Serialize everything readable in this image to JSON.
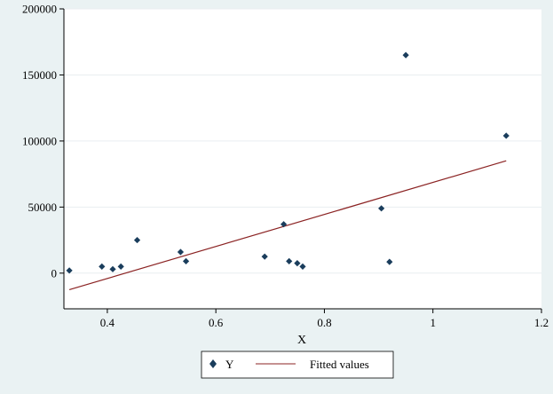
{
  "chart_data": {
    "type": "scatter",
    "title": "",
    "xlabel": "X",
    "ylabel": "",
    "xlim": [
      0.32,
      1.2
    ],
    "ylim": [
      -27000,
      200000
    ],
    "x_ticks": [
      0.4,
      0.6,
      0.8,
      1,
      1.2
    ],
    "x_tick_labels": [
      "0.4",
      "0.6",
      "0.8",
      "1",
      "1.2"
    ],
    "y_ticks": [
      0,
      50000,
      100000,
      150000,
      200000
    ],
    "y_tick_labels": [
      "0",
      "50000",
      "100000",
      "150000",
      "200000"
    ],
    "grid": "horizontal",
    "legend_placement": "bottom",
    "series": [
      {
        "name": "Y",
        "kind": "scatter",
        "marker": "diamond",
        "color": "#1a3d5c",
        "points": [
          {
            "x": 0.33,
            "y": 2000
          },
          {
            "x": 0.39,
            "y": 5000
          },
          {
            "x": 0.41,
            "y": 3000
          },
          {
            "x": 0.425,
            "y": 5000
          },
          {
            "x": 0.455,
            "y": 25000
          },
          {
            "x": 0.535,
            "y": 16000
          },
          {
            "x": 0.545,
            "y": 9000
          },
          {
            "x": 0.69,
            "y": 12500
          },
          {
            "x": 0.725,
            "y": 37000
          },
          {
            "x": 0.735,
            "y": 9000
          },
          {
            "x": 0.75,
            "y": 7500
          },
          {
            "x": 0.76,
            "y": 5000
          },
          {
            "x": 0.905,
            "y": 49000
          },
          {
            "x": 0.92,
            "y": 8500
          },
          {
            "x": 0.95,
            "y": 165000
          },
          {
            "x": 1.135,
            "y": 104000
          }
        ]
      },
      {
        "name": "Fitted values",
        "kind": "line",
        "color": "#8b2323",
        "points": [
          {
            "x": 0.33,
            "y": -12500
          },
          {
            "x": 1.135,
            "y": 85000
          }
        ]
      }
    ]
  }
}
